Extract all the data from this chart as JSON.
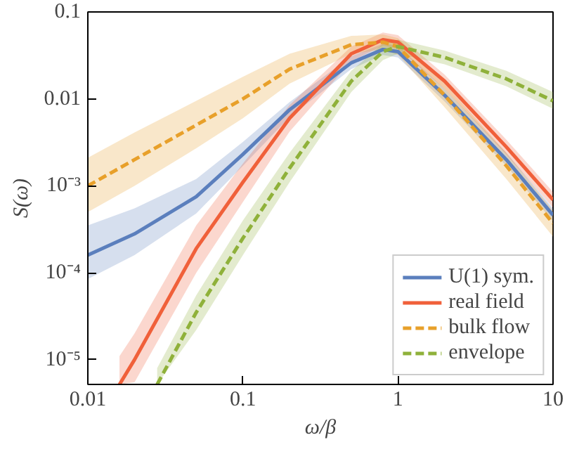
{
  "chart_data": {
    "type": "line",
    "xlabel": "ω/β",
    "ylabel": "S(ω)",
    "log": "xy",
    "grid": false,
    "legend": "bottom right",
    "xlim": [
      0.01,
      10
    ],
    "ylim": [
      5.2e-06,
      0.1
    ],
    "xticks": [
      0.01,
      0.1,
      1,
      10
    ],
    "yticks": [
      {
        "value": 1e-05,
        "label": "10⁻⁵"
      },
      {
        "value": 0.0001,
        "label": "10⁻⁴"
      },
      {
        "value": 0.001,
        "label": "10⁻³"
      },
      0.01,
      0.1
    ],
    "series": [
      {
        "name": "U(1) sym.",
        "color": "#5b7fbd",
        "line_style": "solid",
        "x": [
          0.01,
          0.02,
          0.05,
          0.1,
          0.2,
          0.5,
          0.8,
          1,
          2,
          5,
          10
        ],
        "values": [
          0.00016,
          0.00028,
          0.00075,
          0.0023,
          0.0075,
          0.026,
          0.037,
          0.035,
          0.011,
          0.002,
          0.00046
        ],
        "lower": [
          8.5e-05,
          0.00016,
          0.00048,
          0.0017,
          0.0062,
          0.022,
          0.032,
          0.03,
          0.0093,
          0.0017,
          0.00039
        ],
        "upper": [
          0.00035,
          0.00055,
          0.0012,
          0.0032,
          0.0092,
          0.031,
          0.043,
          0.041,
          0.013,
          0.0024,
          0.00055
        ]
      },
      {
        "name": "real field",
        "color": "#f0603a",
        "line_style": "solid",
        "x": [
          0.016,
          0.02,
          0.05,
          0.1,
          0.2,
          0.5,
          0.8,
          1,
          2,
          5,
          10
        ],
        "values": [
          5.2e-06,
          1e-05,
          0.00019,
          0.0011,
          0.006,
          0.033,
          0.048,
          0.045,
          0.016,
          0.0028,
          0.00069
        ],
        "lower": [
          5.2e-06,
          5.5e-06,
          0.0001,
          0.00065,
          0.0042,
          0.027,
          0.041,
          0.038,
          0.013,
          0.0023,
          0.00056
        ],
        "upper": [
          1.1e-05,
          2e-05,
          0.00035,
          0.0018,
          0.0085,
          0.04,
          0.058,
          0.054,
          0.019,
          0.0034,
          0.00085
        ]
      },
      {
        "name": "bulk flow",
        "color": "#e8a02a",
        "line_style": "dashed",
        "x": [
          0.01,
          0.02,
          0.05,
          0.1,
          0.2,
          0.5,
          0.8,
          1,
          2,
          5,
          10
        ],
        "values": [
          0.001,
          0.002,
          0.005,
          0.01,
          0.022,
          0.042,
          0.045,
          0.04,
          0.011,
          0.0017,
          0.00037
        ],
        "lower": [
          0.0005,
          0.001,
          0.0027,
          0.006,
          0.015,
          0.033,
          0.037,
          0.032,
          0.008,
          0.0012,
          0.00026
        ],
        "upper": [
          0.0021,
          0.0041,
          0.0095,
          0.018,
          0.033,
          0.053,
          0.055,
          0.05,
          0.015,
          0.0024,
          0.00052
        ]
      },
      {
        "name": "envelope",
        "color": "#8fb13a",
        "line_style": "dashed",
        "x": [
          0.028,
          0.05,
          0.1,
          0.2,
          0.5,
          0.8,
          1,
          2,
          5,
          10
        ],
        "values": [
          5.2e-06,
          3.5e-05,
          0.00025,
          0.0016,
          0.016,
          0.035,
          0.04,
          0.03,
          0.017,
          0.0095
        ],
        "lower": [
          5.2e-06,
          2.2e-05,
          0.00016,
          0.0011,
          0.012,
          0.028,
          0.033,
          0.025,
          0.014,
          0.0077
        ],
        "upper": [
          8e-06,
          5.5e-05,
          0.0004,
          0.0024,
          0.021,
          0.043,
          0.048,
          0.036,
          0.021,
          0.012
        ]
      }
    ]
  }
}
